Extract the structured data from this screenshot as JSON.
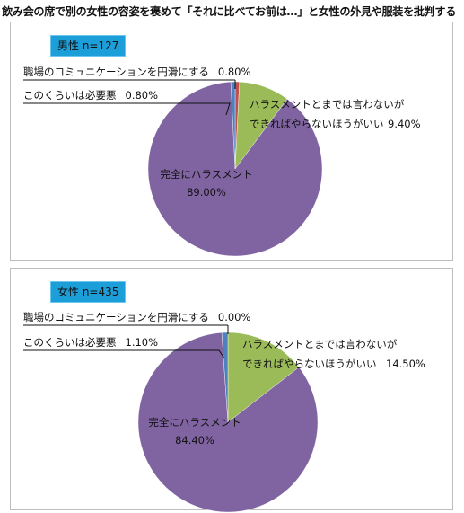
{
  "title": "飲み会の席で別の女性の容姿を褒めて「それに比べてお前は…」と女性の外見や服装を批判する",
  "colors": {
    "harassment": "#8064a2",
    "better_not": "#9bbb59",
    "necessary_evil": "#4f81bd",
    "smooth": "#c0504d",
    "badge": "#1c9fd9"
  },
  "chart_data": [
    {
      "type": "pie",
      "group_label": "男性 n=127",
      "slices": [
        {
          "key": "smooth",
          "label": "職場のコミュニケーションを円滑にする",
          "value": 0.8,
          "value_label": "0.80%"
        },
        {
          "key": "better_not",
          "label_lines": [
            "ハラスメントとまでは言わないが",
            "できればやらないほうがいい"
          ],
          "value": 9.4,
          "value_label": "9.40%"
        },
        {
          "key": "harassment",
          "label": "完全にハラスメント",
          "value": 89.0,
          "value_label": "89.00%"
        },
        {
          "key": "necessary_evil",
          "label": "このくらいは必要悪",
          "value": 0.8,
          "value_label": "0.80%"
        }
      ]
    },
    {
      "type": "pie",
      "group_label": "女性 n=435",
      "slices": [
        {
          "key": "smooth",
          "label": "職場のコミュニケーションを円滑にする",
          "value": 0.0,
          "value_label": "0.00%"
        },
        {
          "key": "better_not",
          "label_lines": [
            "ハラスメントとまでは言わないが",
            "できればやらないほうがいい"
          ],
          "value": 14.5,
          "value_label": "14.50%"
        },
        {
          "key": "harassment",
          "label": "完全にハラスメント",
          "value": 84.4,
          "value_label": "84.40%"
        },
        {
          "key": "necessary_evil",
          "label": "このくらいは必要悪",
          "value": 1.1,
          "value_label": "1.10%"
        }
      ]
    }
  ]
}
